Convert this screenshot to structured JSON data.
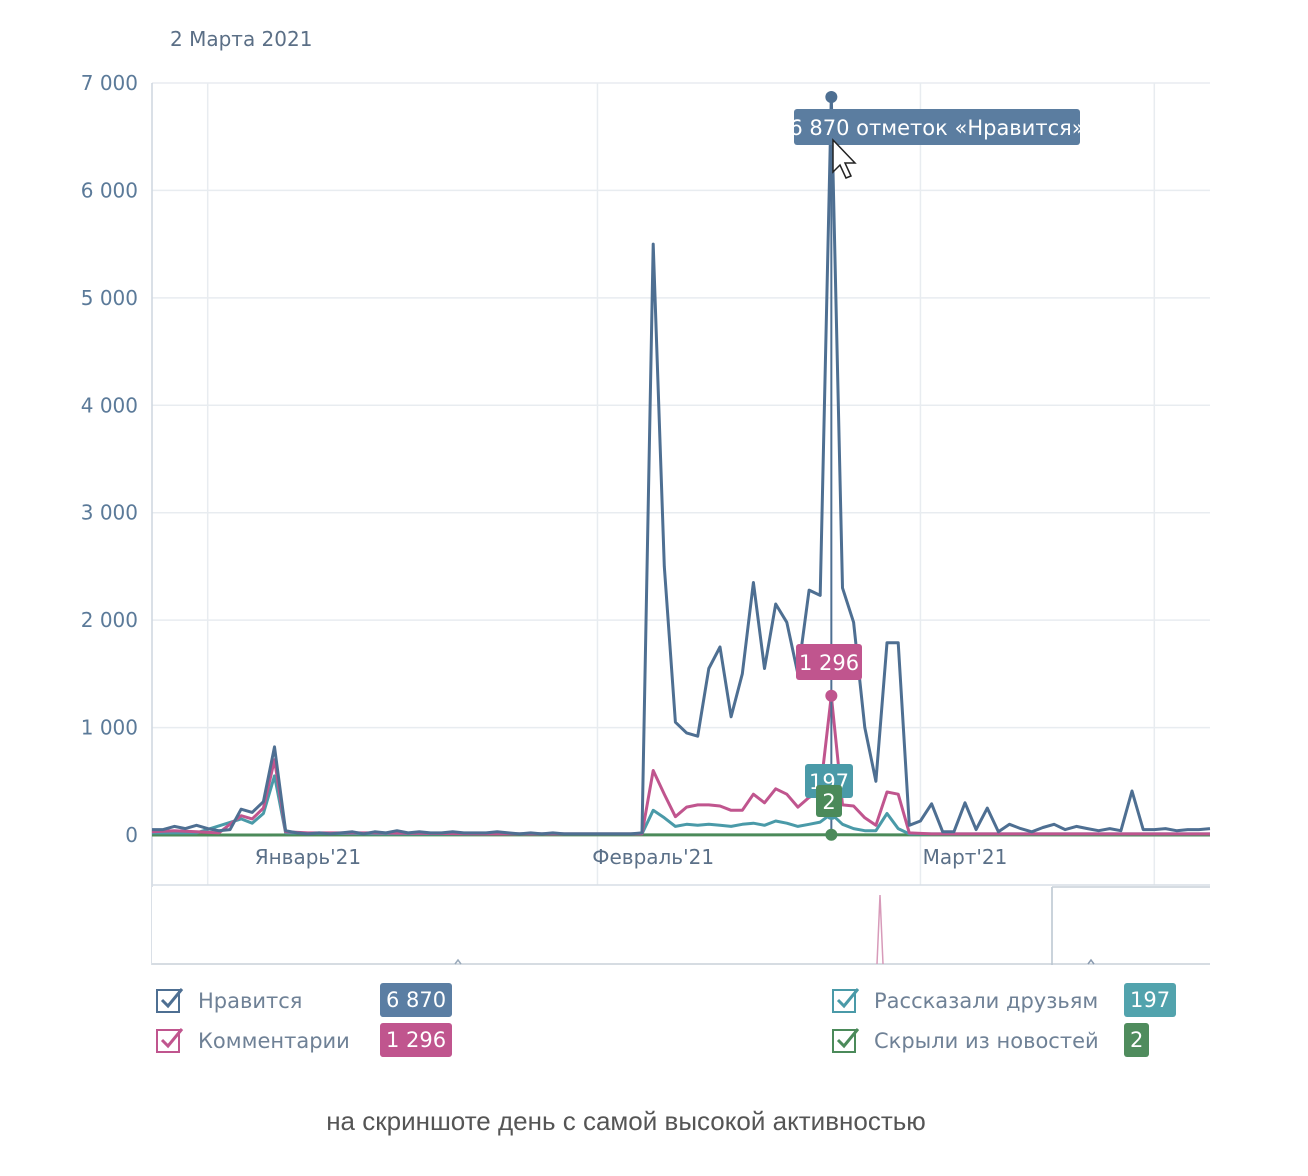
{
  "date_header": "2 Марта 2021",
  "colors": {
    "likes": "#4e6f92",
    "comments": "#c0558e",
    "shares": "#4a9aa8",
    "hidden": "#4b8a5a",
    "grid": "#e8ecf0",
    "tooltip_bg": "#5b7da0"
  },
  "tooltips": {
    "likes": "6 870 отметок «Нравится»",
    "comments": "1 296",
    "shares": "197",
    "hidden": "2"
  },
  "chart_data": {
    "type": "line",
    "xlabel": "",
    "ylabel": "",
    "ylim": [
      0,
      7000
    ],
    "yticks": [
      "0",
      "1 000",
      "2 000",
      "3 000",
      "4 000",
      "5 000",
      "6 000",
      "7 000"
    ],
    "ytick_values": [
      0,
      1000,
      2000,
      3000,
      4000,
      5000,
      6000,
      7000
    ],
    "x_axis_labels": [
      "Январь'21",
      "Февраль'21",
      "Март'21"
    ],
    "x_axis_label_days": [
      14,
      45,
      73
    ],
    "x_range_days": [
      0,
      95
    ],
    "highlight_day": 60,
    "series": [
      {
        "name": "Нравится",
        "key": "likes",
        "points": [
          [
            0,
            50
          ],
          [
            1,
            50
          ],
          [
            2,
            80
          ],
          [
            3,
            60
          ],
          [
            4,
            90
          ],
          [
            5,
            60
          ],
          [
            6,
            40
          ],
          [
            7,
            50
          ],
          [
            8,
            240
          ],
          [
            9,
            210
          ],
          [
            10,
            310
          ],
          [
            11,
            820
          ],
          [
            12,
            40
          ],
          [
            13,
            20
          ],
          [
            14,
            10
          ],
          [
            15,
            20
          ],
          [
            16,
            10
          ],
          [
            17,
            20
          ],
          [
            18,
            30
          ],
          [
            19,
            10
          ],
          [
            20,
            30
          ],
          [
            21,
            20
          ],
          [
            22,
            40
          ],
          [
            23,
            20
          ],
          [
            24,
            30
          ],
          [
            25,
            20
          ],
          [
            26,
            20
          ],
          [
            27,
            30
          ],
          [
            28,
            20
          ],
          [
            29,
            20
          ],
          [
            30,
            20
          ],
          [
            31,
            30
          ],
          [
            32,
            20
          ],
          [
            33,
            10
          ],
          [
            34,
            20
          ],
          [
            35,
            10
          ],
          [
            36,
            20
          ],
          [
            37,
            10
          ],
          [
            38,
            10
          ],
          [
            39,
            10
          ],
          [
            40,
            10
          ],
          [
            41,
            10
          ],
          [
            42,
            10
          ],
          [
            43,
            10
          ],
          [
            44,
            20
          ],
          [
            45,
            5500
          ],
          [
            46,
            2500
          ],
          [
            47,
            1050
          ],
          [
            48,
            950
          ],
          [
            49,
            920
          ],
          [
            50,
            1550
          ],
          [
            51,
            1750
          ],
          [
            52,
            1100
          ],
          [
            53,
            1500
          ],
          [
            54,
            2350
          ],
          [
            55,
            1550
          ],
          [
            56,
            2150
          ],
          [
            57,
            1980
          ],
          [
            58,
            1500
          ],
          [
            59,
            2280
          ],
          [
            60,
            2230
          ],
          [
            61,
            6870
          ],
          [
            62,
            2300
          ],
          [
            63,
            1980
          ],
          [
            64,
            1000
          ],
          [
            65,
            500
          ],
          [
            66,
            1790
          ],
          [
            67,
            1790
          ],
          [
            68,
            90
          ],
          [
            69,
            130
          ],
          [
            70,
            290
          ],
          [
            71,
            30
          ],
          [
            72,
            30
          ],
          [
            73,
            300
          ],
          [
            74,
            50
          ],
          [
            75,
            250
          ],
          [
            76,
            30
          ],
          [
            77,
            100
          ],
          [
            78,
            60
          ],
          [
            79,
            30
          ],
          [
            80,
            70
          ],
          [
            81,
            100
          ],
          [
            82,
            50
          ],
          [
            83,
            80
          ],
          [
            84,
            60
          ],
          [
            85,
            40
          ],
          [
            86,
            60
          ],
          [
            87,
            40
          ],
          [
            88,
            410
          ],
          [
            89,
            50
          ],
          [
            90,
            50
          ],
          [
            91,
            60
          ],
          [
            92,
            40
          ],
          [
            93,
            50
          ],
          [
            94,
            50
          ],
          [
            95,
            60
          ]
        ]
      },
      {
        "name": "Комментарии",
        "key": "comments",
        "points": [
          [
            0,
            30
          ],
          [
            2,
            40
          ],
          [
            4,
            30
          ],
          [
            6,
            20
          ],
          [
            8,
            180
          ],
          [
            9,
            150
          ],
          [
            10,
            250
          ],
          [
            11,
            700
          ],
          [
            12,
            30
          ],
          [
            14,
            20
          ],
          [
            20,
            20
          ],
          [
            30,
            10
          ],
          [
            40,
            10
          ],
          [
            44,
            10
          ],
          [
            45,
            600
          ],
          [
            46,
            380
          ],
          [
            47,
            170
          ],
          [
            48,
            260
          ],
          [
            49,
            280
          ],
          [
            50,
            280
          ],
          [
            51,
            270
          ],
          [
            52,
            230
          ],
          [
            53,
            230
          ],
          [
            54,
            380
          ],
          [
            55,
            300
          ],
          [
            56,
            430
          ],
          [
            57,
            380
          ],
          [
            58,
            260
          ],
          [
            59,
            350
          ],
          [
            60,
            400
          ],
          [
            61,
            1296
          ],
          [
            62,
            280
          ],
          [
            63,
            270
          ],
          [
            64,
            160
          ],
          [
            65,
            90
          ],
          [
            66,
            400
          ],
          [
            67,
            380
          ],
          [
            68,
            20
          ],
          [
            70,
            10
          ],
          [
            80,
            10
          ],
          [
            95,
            10
          ]
        ]
      },
      {
        "name": "Рассказали друзьям",
        "key": "shares",
        "points": [
          [
            0,
            20
          ],
          [
            4,
            20
          ],
          [
            8,
            150
          ],
          [
            9,
            110
          ],
          [
            10,
            200
          ],
          [
            11,
            550
          ],
          [
            12,
            20
          ],
          [
            20,
            10
          ],
          [
            44,
            10
          ],
          [
            45,
            230
          ],
          [
            46,
            160
          ],
          [
            47,
            80
          ],
          [
            48,
            100
          ],
          [
            49,
            90
          ],
          [
            50,
            100
          ],
          [
            51,
            90
          ],
          [
            52,
            80
          ],
          [
            53,
            100
          ],
          [
            54,
            110
          ],
          [
            55,
            90
          ],
          [
            56,
            130
          ],
          [
            57,
            110
          ],
          [
            58,
            80
          ],
          [
            59,
            100
          ],
          [
            60,
            120
          ],
          [
            61,
            197
          ],
          [
            62,
            100
          ],
          [
            63,
            60
          ],
          [
            64,
            40
          ],
          [
            65,
            40
          ],
          [
            66,
            200
          ],
          [
            67,
            60
          ],
          [
            68,
            10
          ],
          [
            95,
            10
          ]
        ]
      },
      {
        "name": "Скрыли из новостей",
        "key": "hidden",
        "points": [
          [
            0,
            0
          ],
          [
            61,
            2
          ],
          [
            95,
            0
          ]
        ]
      }
    ],
    "navigator": {
      "peak_day": 61
    }
  },
  "legend": [
    {
      "label": "Нравится",
      "badge": "6 870",
      "key": "likes"
    },
    {
      "label": "Комментарии",
      "badge": "1 296",
      "key": "comments"
    },
    {
      "label": "Рассказали друзьям",
      "badge": "197",
      "key": "shares"
    },
    {
      "label": "Скрыли из новостей",
      "badge": "2",
      "key": "hidden"
    }
  ],
  "caption": "на скриншоте день с самой высокой активностью"
}
